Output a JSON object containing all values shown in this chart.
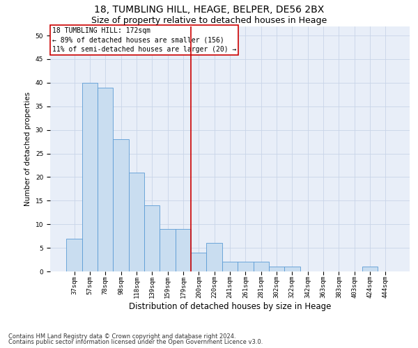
{
  "title1": "18, TUMBLING HILL, HEAGE, BELPER, DE56 2BX",
  "title2": "Size of property relative to detached houses in Heage",
  "xlabel": "Distribution of detached houses by size in Heage",
  "ylabel": "Number of detached properties",
  "categories": [
    "37sqm",
    "57sqm",
    "78sqm",
    "98sqm",
    "118sqm",
    "139sqm",
    "159sqm",
    "179sqm",
    "200sqm",
    "220sqm",
    "241sqm",
    "261sqm",
    "281sqm",
    "302sqm",
    "322sqm",
    "342sqm",
    "363sqm",
    "383sqm",
    "403sqm",
    "424sqm",
    "444sqm"
  ],
  "values": [
    7,
    40,
    39,
    28,
    21,
    14,
    9,
    9,
    4,
    6,
    2,
    2,
    2,
    1,
    1,
    0,
    0,
    0,
    0,
    1,
    0
  ],
  "bar_color": "#c9ddf0",
  "bar_edge_color": "#5b9bd5",
  "vline_x": 7.5,
  "vline_color": "#cc0000",
  "annotation_lines": [
    "18 TUMBLING HILL: 172sqm",
    "← 89% of detached houses are smaller (156)",
    "11% of semi-detached houses are larger (20) →"
  ],
  "annotation_box_color": "#cc0000",
  "ylim": [
    0,
    52
  ],
  "yticks": [
    0,
    5,
    10,
    15,
    20,
    25,
    30,
    35,
    40,
    45,
    50
  ],
  "grid_color": "#c8d4e8",
  "footnote1": "Contains HM Land Registry data © Crown copyright and database right 2024.",
  "footnote2": "Contains public sector information licensed under the Open Government Licence v3.0.",
  "title1_fontsize": 10,
  "title2_fontsize": 9,
  "xlabel_fontsize": 8.5,
  "ylabel_fontsize": 7.5,
  "tick_fontsize": 6.5,
  "annotation_fontsize": 7,
  "footnote_fontsize": 6,
  "background_color": "#e8eef8"
}
